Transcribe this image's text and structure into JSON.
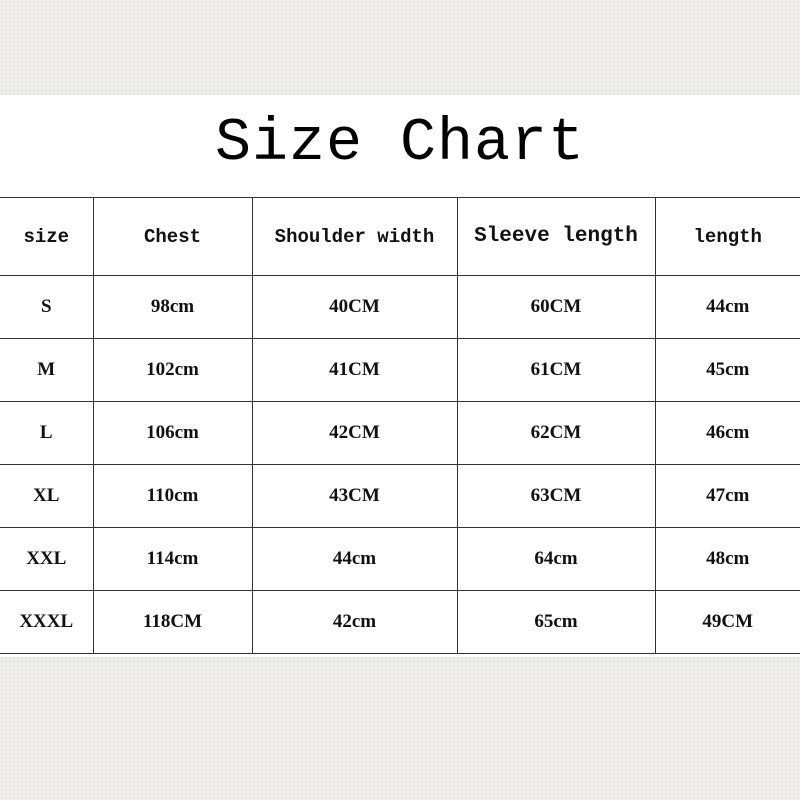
{
  "title": "Size Chart",
  "table": {
    "headers": [
      "size",
      "Chest",
      "Shoulder width",
      "Sleeve length",
      "length"
    ],
    "rows": [
      [
        "S",
        "98cm",
        "40CM",
        "60CM",
        "44cm"
      ],
      [
        "M",
        "102cm",
        "41CM",
        "61CM",
        "45cm"
      ],
      [
        "L",
        "106cm",
        "42CM",
        "62CM",
        "46cm"
      ],
      [
        "XL",
        "110cm",
        "43CM",
        "63CM",
        "47cm"
      ],
      [
        "XXL",
        "114cm",
        "44cm",
        "64cm",
        "48cm"
      ],
      [
        "XXXL",
        "118CM",
        "42cm",
        "65cm",
        "49CM"
      ]
    ]
  }
}
